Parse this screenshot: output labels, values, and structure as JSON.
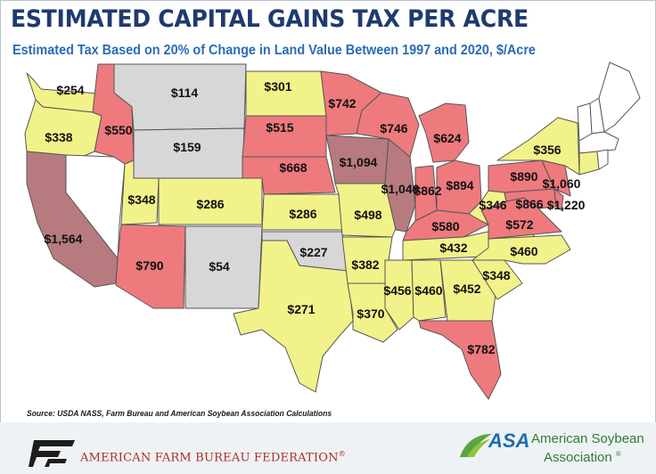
{
  "title": "ESTIMATED CAPITAL GAINS TAX PER ACRE",
  "subtitle": "Estimated Tax Based on 20% of Change in Land Value Between 1997 and 2020, $/Acre",
  "source": "Source: USDA NASS, Farm Bureau and American Soybean Association Calculations",
  "colors": {
    "yellow": "#f2f28a",
    "red": "#ee7a7e",
    "dark_red": "#b77b7f",
    "gray": "#d7d7d7",
    "white": "#ffffff",
    "border": "#555555"
  },
  "states": [
    {
      "name": "Washington",
      "label": "$254",
      "color": "yellow"
    },
    {
      "name": "Oregon",
      "label": "$338",
      "color": "yellow"
    },
    {
      "name": "California",
      "label": "$1,564",
      "color": "dark_red"
    },
    {
      "name": "Nevada",
      "label": "",
      "color": "white"
    },
    {
      "name": "Idaho",
      "label": "$550",
      "color": "red"
    },
    {
      "name": "Montana",
      "label": "$114",
      "color": "gray"
    },
    {
      "name": "Wyoming",
      "label": "$159",
      "color": "gray"
    },
    {
      "name": "Utah",
      "label": "$348",
      "color": "yellow"
    },
    {
      "name": "Arizona",
      "label": "$790",
      "color": "red"
    },
    {
      "name": "Colorado",
      "label": "$286",
      "color": "yellow"
    },
    {
      "name": "New Mexico",
      "label": "$54",
      "color": "gray"
    },
    {
      "name": "North Dakota",
      "label": "$301",
      "color": "yellow"
    },
    {
      "name": "South Dakota",
      "label": "$515",
      "color": "red"
    },
    {
      "name": "Nebraska",
      "label": "$668",
      "color": "red"
    },
    {
      "name": "Kansas",
      "label": "$286",
      "color": "yellow"
    },
    {
      "name": "Oklahoma",
      "label": "$227",
      "color": "gray"
    },
    {
      "name": "Texas",
      "label": "$271",
      "color": "yellow"
    },
    {
      "name": "Minnesota",
      "label": "$742",
      "color": "red"
    },
    {
      "name": "Iowa",
      "label": "$1,094",
      "color": "dark_red"
    },
    {
      "name": "Missouri",
      "label": "$498",
      "color": "yellow"
    },
    {
      "name": "Arkansas",
      "label": "$382",
      "color": "yellow"
    },
    {
      "name": "Louisiana",
      "label": "$370",
      "color": "yellow"
    },
    {
      "name": "Wisconsin",
      "label": "$746",
      "color": "red"
    },
    {
      "name": "Illinois",
      "label": "$1,046",
      "color": "dark_red"
    },
    {
      "name": "Michigan",
      "label": "$624",
      "color": "red"
    },
    {
      "name": "Indiana",
      "label": "$862",
      "color": "red"
    },
    {
      "name": "Ohio",
      "label": "$894",
      "color": "red"
    },
    {
      "name": "Kentucky",
      "label": "$580",
      "color": "red"
    },
    {
      "name": "Tennessee",
      "label": "$432",
      "color": "yellow"
    },
    {
      "name": "Mississippi",
      "label": "$456",
      "color": "yellow"
    },
    {
      "name": "Alabama",
      "label": "$460",
      "color": "yellow"
    },
    {
      "name": "Georgia",
      "label": "$452",
      "color": "yellow"
    },
    {
      "name": "Florida",
      "label": "$782",
      "color": "red"
    },
    {
      "name": "South Carolina",
      "label": "$348",
      "color": "yellow"
    },
    {
      "name": "North Carolina",
      "label": "$460",
      "color": "yellow"
    },
    {
      "name": "Virginia",
      "label": "$572",
      "color": "red"
    },
    {
      "name": "West Virginia",
      "label": "$346",
      "color": "yellow"
    },
    {
      "name": "Pennsylvania",
      "label": "$890",
      "color": "red"
    },
    {
      "name": "New York",
      "label": "$356",
      "color": "yellow"
    },
    {
      "name": "New Jersey",
      "label": "$1,060",
      "color": "red"
    },
    {
      "name": "Maryland",
      "label": "$866",
      "color": "red"
    },
    {
      "name": "Delaware",
      "label": "$1,220",
      "color": "red"
    },
    {
      "name": "Vermont",
      "label": "",
      "color": "white"
    },
    {
      "name": "New Hampshire",
      "label": "",
      "color": "white"
    },
    {
      "name": "Maine",
      "label": "",
      "color": "white"
    },
    {
      "name": "Massachusetts",
      "label": "",
      "color": "white"
    },
    {
      "name": "Connecticut",
      "label": "",
      "color": "yellow"
    },
    {
      "name": "Rhode Island",
      "label": "",
      "color": "white"
    }
  ],
  "footer": {
    "afbf_logo": "FB",
    "afbf_name": "AMERICAN FARM BUREAU FEDERATION",
    "afbf_reg": "®",
    "asa_abbr": "ASA",
    "asa_name_line1": "American Soybean",
    "asa_name_line2": "Association",
    "asa_reg": "®"
  }
}
